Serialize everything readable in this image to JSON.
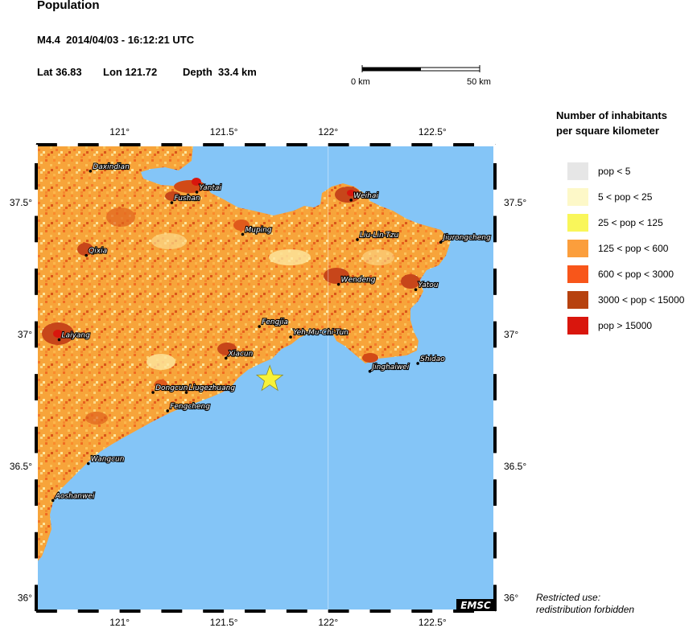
{
  "header": {
    "title": "Population",
    "event_line": "M4.4  2014/04/03 - 16:12:21 UTC",
    "lat_label": "Lat 36.83",
    "lon_label": "Lon 121.72",
    "depth_label": "Depth  33.4 km"
  },
  "scale_bar": {
    "start_label": "0 km",
    "end_label": "50 km"
  },
  "map": {
    "lon_ticks": [
      "121°",
      "121.5°",
      "122°",
      "122.5°"
    ],
    "lat_ticks": [
      "37.5°",
      "37°",
      "36.5°",
      "36°"
    ],
    "epicenter": {
      "lat": 36.83,
      "lon": 121.72
    },
    "cities": [
      {
        "name": "Daxindian",
        "lat": 37.62,
        "lon": 120.86
      },
      {
        "name": "Yantai",
        "lat": 37.54,
        "lon": 121.37
      },
      {
        "name": "Fushan",
        "lat": 37.5,
        "lon": 121.25
      },
      {
        "name": "Weihai",
        "lat": 37.51,
        "lon": 122.11
      },
      {
        "name": "Muping",
        "lat": 37.38,
        "lon": 121.59
      },
      {
        "name": "Liu-Lin-Tzu",
        "lat": 37.36,
        "lon": 122.14
      },
      {
        "name": "Jiurongcheng",
        "lat": 37.35,
        "lon": 122.54
      },
      {
        "name": "Qixia",
        "lat": 37.3,
        "lon": 120.84
      },
      {
        "name": "Wendeng",
        "lat": 37.19,
        "lon": 122.05
      },
      {
        "name": "Yatou",
        "lat": 37.17,
        "lon": 122.42
      },
      {
        "name": "Fengjia",
        "lat": 37.03,
        "lon": 121.67
      },
      {
        "name": "Yeh-Mu-Chi-Tun",
        "lat": 36.99,
        "lon": 121.82
      },
      {
        "name": "Laiyang",
        "lat": 36.98,
        "lon": 120.71
      },
      {
        "name": "Xiacun",
        "lat": 36.91,
        "lon": 121.51
      },
      {
        "name": "Jinghaiwei",
        "lat": 36.86,
        "lon": 122.2
      },
      {
        "name": "Shidao",
        "lat": 36.89,
        "lon": 122.43
      },
      {
        "name": "Dongcun",
        "lat": 36.78,
        "lon": 121.16
      },
      {
        "name": "Liugezhuang",
        "lat": 36.78,
        "lon": 121.32
      },
      {
        "name": "Fengcheng",
        "lat": 36.71,
        "lon": 121.23
      },
      {
        "name": "Wangcun",
        "lat": 36.51,
        "lon": 120.85
      },
      {
        "name": "Aoshanwei",
        "lat": 36.37,
        "lon": 120.68
      }
    ]
  },
  "legend": {
    "title_line1": "Number of inhabitants",
    "title_line2": "per square kilometer",
    "items": [
      {
        "label": "pop < 5",
        "color": "#e6e6e6"
      },
      {
        "label": "5 < pop < 25",
        "color": "#fdf8c8"
      },
      {
        "label": "25 < pop < 125",
        "color": "#f9f65a"
      },
      {
        "label": "125 < pop < 600",
        "color": "#fb9e3c"
      },
      {
        "label": "600 < pop < 3000",
        "color": "#f8561a"
      },
      {
        "label": "3000 < pop < 15000",
        "color": "#b7420f"
      },
      {
        "label": "pop > 15000",
        "color": "#d9160d"
      }
    ]
  },
  "notice": {
    "line1": "Restricted use:",
    "line2": "redistribution forbidden"
  },
  "logo": "EMSC",
  "colors": {
    "sea": "#84c5f7",
    "land_base": "#f5aa3c",
    "epicenter_star": "#f7f238"
  }
}
